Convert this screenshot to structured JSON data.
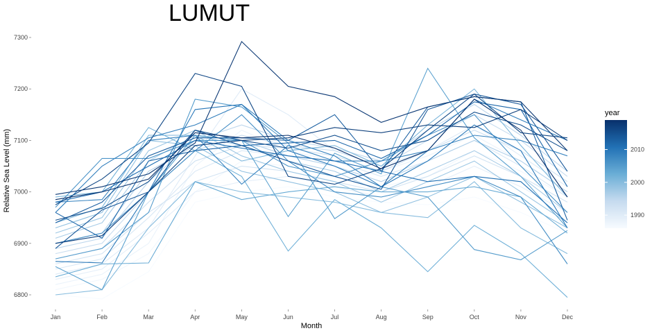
{
  "chart_data": {
    "type": "line",
    "title": "LUMUT",
    "xlabel": "Month",
    "ylabel": "Relative Sea Level (mm)",
    "categories": [
      "Jan",
      "Feb",
      "Mar",
      "Apr",
      "May",
      "Jun",
      "Jul",
      "Aug",
      "Sep",
      "Oct",
      "Nov",
      "Dec"
    ],
    "y_ticks": [
      6800,
      6900,
      7000,
      7100,
      7200,
      7300
    ],
    "ylim": [
      6785,
      7305
    ],
    "grid": false,
    "legend": {
      "title": "year",
      "position": "right",
      "type": "continuous-colorbar",
      "range": [
        1986,
        2019
      ],
      "ticks": [
        1990,
        2000,
        2010
      ],
      "color_low": "#f7fbff",
      "color_high": "#08306b"
    },
    "series": [
      {
        "year": 1986,
        "values": [
          6800,
          6792,
          6845,
          6980,
          7000,
          7010,
          6990,
          6980,
          6975,
          6990,
          6960,
          6920
        ]
      },
      {
        "year": 1987,
        "values": [
          6810,
          6830,
          6880,
          7000,
          7060,
          7050,
          7030,
          7010,
          7030,
          7080,
          7040,
          6990
        ]
      },
      {
        "year": 1988,
        "values": [
          6820,
          6840,
          6900,
          7050,
          7120,
          7080,
          7060,
          7040,
          7070,
          7110,
          7060,
          7000
        ]
      },
      {
        "year": 1989,
        "values": [
          6830,
          6850,
          6920,
          7000,
          7020,
          7030,
          7010,
          6990,
          7010,
          7050,
          7010,
          6960
        ]
      },
      {
        "year": 1990,
        "values": [
          6840,
          6860,
          6930,
          7070,
          7200,
          7150,
          7080,
          7050,
          7080,
          7130,
          7070,
          7010
        ]
      },
      {
        "year": 1991,
        "values": [
          6850,
          6870,
          6950,
          7040,
          7080,
          7070,
          7060,
          7030,
          7060,
          7100,
          7050,
          6990
        ]
      },
      {
        "year": 1992,
        "values": [
          6860,
          6880,
          6960,
          7020,
          7050,
          7040,
          7020,
          7000,
          7030,
          7070,
          7030,
          6980
        ]
      },
      {
        "year": 1993,
        "values": [
          6870,
          6890,
          6980,
          7060,
          7090,
          7085,
          7070,
          7040,
          7080,
          7120,
          7080,
          7020
        ]
      },
      {
        "year": 1994,
        "values": [
          6880,
          6900,
          7000,
          7080,
          7110,
          7090,
          7080,
          7050,
          7100,
          7150,
          7100,
          7030
        ]
      },
      {
        "year": 1995,
        "values": [
          6890,
          6910,
          7020,
          7100,
          7130,
          7100,
          7085,
          7060,
          7120,
          7170,
          7110,
          7040
        ]
      },
      {
        "year": 1996,
        "values": [
          6900,
          6920,
          7040,
          7090,
          7100,
          7070,
          7050,
          7020,
          7060,
          7100,
          7060,
          7000
        ]
      },
      {
        "year": 1997,
        "values": [
          6910,
          6940,
          7060,
          7110,
          7090,
          7060,
          7040,
          7000,
          7040,
          7080,
          7030,
          6960
        ]
      },
      {
        "year": 1998,
        "values": [
          6920,
          6950,
          7080,
          7120,
          7070,
          7040,
          7020,
          6980,
          7020,
          7060,
          7000,
          6940
        ]
      },
      {
        "year": 1999,
        "values": [
          6930,
          6960,
          7100,
          7090,
          7040,
          7020,
          7000,
          6960,
          6990,
          7030,
          6980,
          6930
        ]
      },
      {
        "year": 2000,
        "values": [
          6800,
          6810,
          6930,
          7020,
          7000,
          6990,
          6980,
          6960,
          6950,
          7020,
          6930,
          6880
        ]
      },
      {
        "year": 2001,
        "values": [
          6940,
          6970,
          7110,
          7110,
          7060,
          7080,
          7090,
          7050,
          7130,
          7200,
          7090,
          6990
        ]
      },
      {
        "year": 2002,
        "values": [
          6990,
          7000,
          7125,
          7080,
          7030,
          6885,
          6985,
          6930,
          6845,
          6935,
          6880,
          6795
        ]
      },
      {
        "year": 2003,
        "values": [
          6835,
          6860,
          6862,
          7020,
          6985,
          7000,
          7010,
          7000,
          7000,
          7010,
          6990,
          6920
        ]
      },
      {
        "year": 2004,
        "values": [
          6855,
          6810,
          7000,
          7110,
          7100,
          6952,
          7075,
          7035,
          7240,
          7105,
          7030,
          6930
        ]
      },
      {
        "year": 2005,
        "values": [
          6870,
          6890,
          6960,
          7180,
          7165,
          7095,
          6948,
          7010,
          6990,
          6888,
          6868,
          6925
        ]
      },
      {
        "year": 2006,
        "values": [
          6970,
          7065,
          7065,
          7100,
          7100,
          7050,
          7030,
          7060,
          7110,
          7150,
          7050,
          6960
        ]
      },
      {
        "year": 2007,
        "values": [
          6900,
          6920,
          7000,
          7080,
          7150,
          7060,
          7000,
          6990,
          7010,
          7030,
          6990,
          6860
        ]
      },
      {
        "year": 2008,
        "values": [
          6980,
          6985,
          7100,
          7110,
          7015,
          7090,
          7060,
          7060,
          7080,
          7110,
          7100,
          7070
        ]
      },
      {
        "year": 2009,
        "values": [
          6960,
          7050,
          7105,
          7130,
          7170,
          7100,
          7070,
          7010,
          7080,
          7180,
          7140,
          7100
        ]
      },
      {
        "year": 2010,
        "values": [
          6865,
          6862,
          7000,
          7160,
          7170,
          7080,
          7050,
          7010,
          7060,
          7130,
          7080,
          6930
        ]
      },
      {
        "year": 2011,
        "values": [
          6980,
          7000,
          7050,
          7100,
          7085,
          7070,
          7060,
          7040,
          7020,
          7030,
          7020,
          6940
        ]
      },
      {
        "year": 2012,
        "values": [
          6960,
          6910,
          7060,
          7080,
          7090,
          7095,
          7100,
          7065,
          7110,
          7175,
          7160,
          7010
        ]
      },
      {
        "year": 2013,
        "values": [
          6940,
          6980,
          7070,
          7105,
          7105,
          7100,
          7150,
          7040,
          7165,
          7185,
          7175,
          6945
        ]
      },
      {
        "year": 2014,
        "values": [
          6890,
          6965,
          7000,
          7120,
          7090,
          7060,
          7030,
          7005,
          7160,
          7190,
          7170,
          7040
        ]
      },
      {
        "year": 2015,
        "values": [
          6945,
          6968,
          7020,
          7120,
          7100,
          7085,
          7110,
          7080,
          7100,
          7155,
          7130,
          7080
        ]
      },
      {
        "year": 2016,
        "values": [
          6975,
          7025,
          7095,
          7230,
          7205,
          7030,
          7015,
          7045,
          7120,
          7190,
          7115,
          7105
        ]
      },
      {
        "year": 2017,
        "values": [
          6900,
          6915,
          7000,
          7090,
          7100,
          7105,
          7125,
          7115,
          7130,
          7125,
          7160,
          7100
        ]
      },
      {
        "year": 2018,
        "values": [
          6995,
          7010,
          7035,
          7095,
          7292,
          7205,
          7185,
          7135,
          7165,
          7185,
          7175,
          7080
        ]
      },
      {
        "year": 2019,
        "values": [
          6985,
          7000,
          7025,
          7115,
          7105,
          7110,
          7085,
          7045,
          7080,
          7180,
          7120,
          6990
        ]
      }
    ]
  }
}
